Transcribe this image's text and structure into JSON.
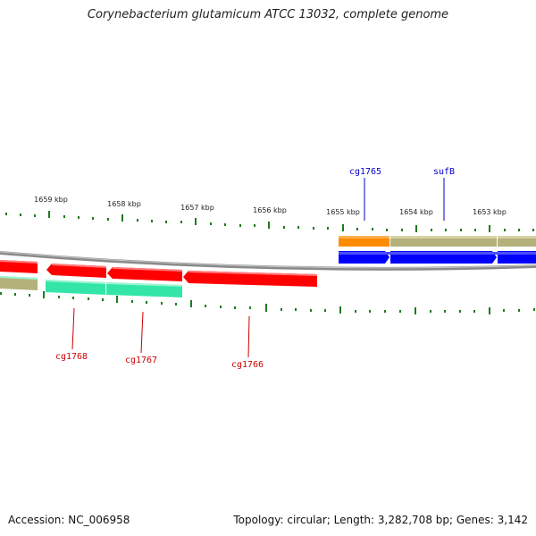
{
  "title": "Corynebacterium glutamicum ATCC 13032, complete genome",
  "footer": {
    "accession": "Accession: NC_006958",
    "summary": "Topology: circular; Length: 3,282,708 bp; Genes: 3,142"
  },
  "colors": {
    "backbone": "#8a8a8a",
    "tick": "#1f7a1f",
    "reverse_gene": "#ff0000",
    "forward_gene": "#0000ff",
    "olive": "#b5b17a",
    "teal": "#33e6a8",
    "orange": "#ff8c00",
    "reverse_label": "#cc0000",
    "forward_label": "#0000cc"
  },
  "scale_labels": [
    "1659 kbp",
    "1658 kbp",
    "1657 kbp",
    "1656 kbp",
    "1655 kbp",
    "1654 kbp",
    "1653 kbp"
  ],
  "gene_labels": {
    "cg1765": "cg1765",
    "sufB": "sufB",
    "cg1768": "cg1768",
    "cg1767": "cg1767",
    "cg1766": "cg1766"
  }
}
